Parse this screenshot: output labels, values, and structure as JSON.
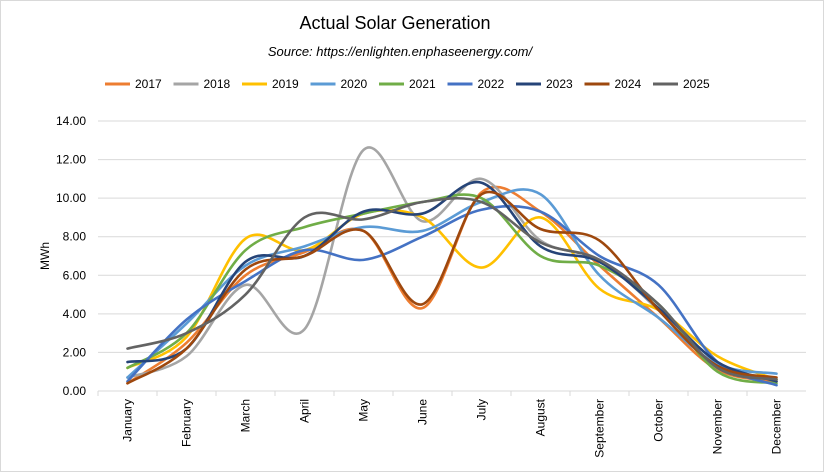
{
  "chart_data": {
    "type": "line",
    "title": "Actual Solar Generation",
    "subtitle": "Source: https://enlighten.enphaseenergy.com/",
    "xlabel": "",
    "ylabel": "MWh",
    "ylim": [
      0,
      14
    ],
    "yticks": [
      "0.00",
      "2.00",
      "4.00",
      "6.00",
      "8.00",
      "10.00",
      "12.00",
      "14.00"
    ],
    "grid": true,
    "legend": "top",
    "smooth": true,
    "categories": [
      "January",
      "February",
      "March",
      "April",
      "May",
      "June",
      "July",
      "August",
      "September",
      "October",
      "November",
      "December"
    ],
    "series": [
      {
        "name": "2017",
        "color": "#ED7D31",
        "values": [
          0.4,
          2.5,
          6.0,
          7.2,
          8.3,
          4.3,
          10.3,
          9.3,
          6.5,
          3.8,
          1.1,
          0.5
        ]
      },
      {
        "name": "2018",
        "color": "#A5A5A5",
        "values": [
          0.7,
          1.8,
          5.5,
          3.2,
          12.5,
          8.8,
          11.0,
          7.8,
          6.8,
          4.2,
          1.2,
          0.6
        ]
      },
      {
        "name": "2019",
        "color": "#FFC000",
        "values": [
          1.2,
          2.8,
          7.9,
          7.3,
          9.2,
          9.0,
          6.4,
          9.0,
          5.3,
          4.2,
          1.8,
          0.6
        ]
      },
      {
        "name": "2020",
        "color": "#5B9BD5",
        "values": [
          0.7,
          3.5,
          6.5,
          7.5,
          8.5,
          8.3,
          9.8,
          10.2,
          6.0,
          3.8,
          1.4,
          0.9
        ]
      },
      {
        "name": "2021",
        "color": "#70AD47",
        "values": [
          1.2,
          3.0,
          7.3,
          8.5,
          9.2,
          9.8,
          10.0,
          7.0,
          6.5,
          4.5,
          1.0,
          0.4
        ]
      },
      {
        "name": "2022",
        "color": "#4472C4",
        "values": [
          0.5,
          3.7,
          5.7,
          7.3,
          6.8,
          8.0,
          9.4,
          9.3,
          7.0,
          5.5,
          1.5,
          0.3
        ]
      },
      {
        "name": "2023",
        "color": "#264478",
        "values": [
          1.5,
          2.2,
          6.7,
          7.0,
          9.3,
          9.2,
          10.8,
          7.5,
          6.7,
          4.3,
          1.5,
          0.5
        ]
      },
      {
        "name": "2024",
        "color": "#9E480E",
        "values": [
          0.4,
          2.2,
          6.3,
          7.0,
          8.3,
          4.5,
          10.2,
          8.4,
          7.8,
          4.2,
          1.3,
          0.7
        ]
      },
      {
        "name": "2025",
        "color": "#636363",
        "values": [
          2.2,
          3.0,
          5.0,
          9.0,
          8.9,
          9.8,
          9.8,
          7.7,
          6.8,
          4.5,
          1.2,
          0.6
        ]
      }
    ]
  }
}
